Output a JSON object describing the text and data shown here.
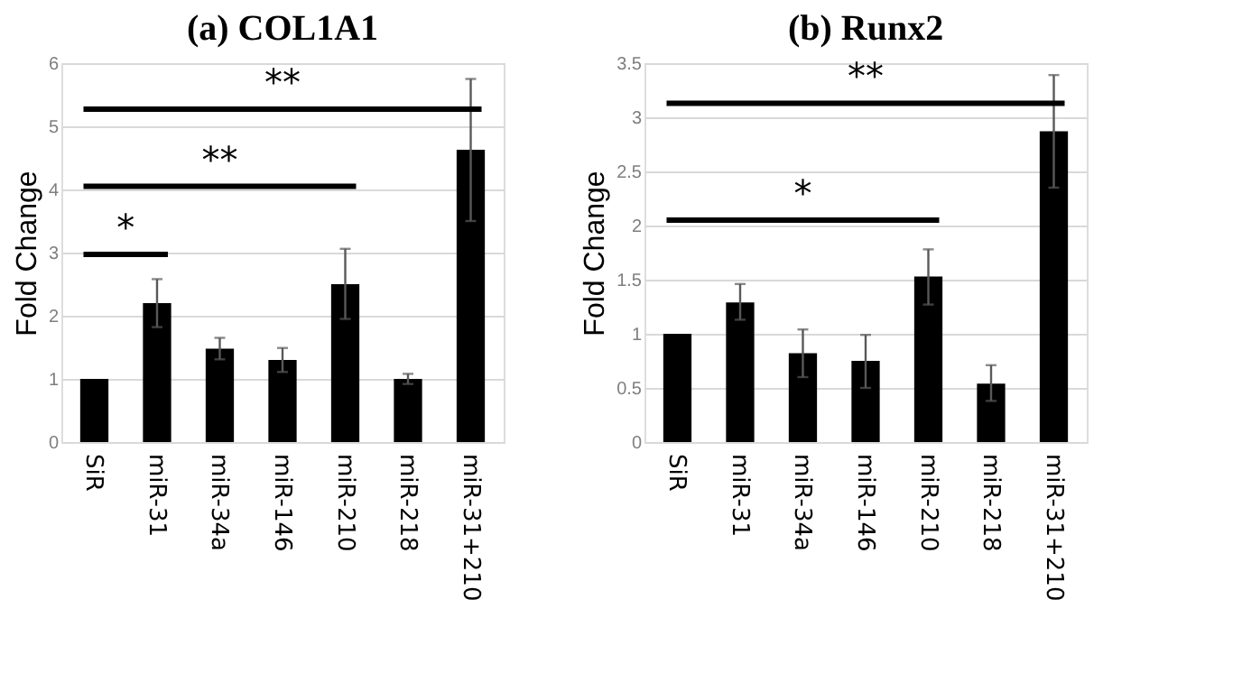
{
  "chart_data": [
    {
      "type": "bar",
      "title": "(a)  COL1A1",
      "ylabel": "Fold Change",
      "categories": [
        "SiR",
        "miR-31",
        "miR-34a",
        "miR-146",
        "miR-210",
        "miR-218",
        "miR-31+210"
      ],
      "series": [
        {
          "color": "#000000",
          "values": [
            1,
            2.2,
            1.48,
            1.3,
            2.5,
            1.0,
            4.63
          ],
          "errors": [
            null,
            [
              1.82,
              2.58
            ],
            [
              1.31,
              1.65
            ],
            [
              1.11,
              1.49
            ],
            [
              1.95,
              3.06
            ],
            [
              0.92,
              1.08
            ],
            [
              3.5,
              5.75
            ]
          ]
        }
      ],
      "ylim": [
        0,
        6
      ],
      "yticks": [
        0,
        1,
        2,
        3,
        4,
        5,
        6
      ],
      "grid": "y",
      "annotations": [
        "*",
        "**"
      ],
      "ref_lines": [
        {
          "axis": "y",
          "value": 5.27,
          "label": "**"
        }
      ]
    },
    {
      "type": "bar",
      "title": "(b)  Runx2",
      "ylabel": "Fold Change",
      "categories": [
        "SiR",
        "miR-31",
        "miR-34a",
        "miR-146",
        "miR-210",
        "miR-218",
        "miR-31+210"
      ],
      "series": [
        {
          "color": "#000000",
          "values": [
            1,
            1.29,
            0.82,
            0.75,
            1.53,
            0.54,
            2.87
          ],
          "errors": [
            null,
            [
              1.13,
              1.46
            ],
            [
              0.6,
              1.04
            ],
            [
              0.5,
              0.99
            ],
            [
              1.27,
              1.78
            ],
            [
              0.38,
              0.71
            ],
            [
              2.35,
              3.39
            ]
          ]
        }
      ],
      "ylim": [
        0,
        3.5
      ],
      "yticks": [
        0,
        0.5,
        1,
        1.5,
        2,
        2.5,
        3,
        3.5
      ],
      "grid": "y",
      "annotations": [
        "*"
      ],
      "ref_lines": [
        {
          "axis": "y",
          "value": 3.13,
          "label": "**"
        }
      ]
    }
  ]
}
